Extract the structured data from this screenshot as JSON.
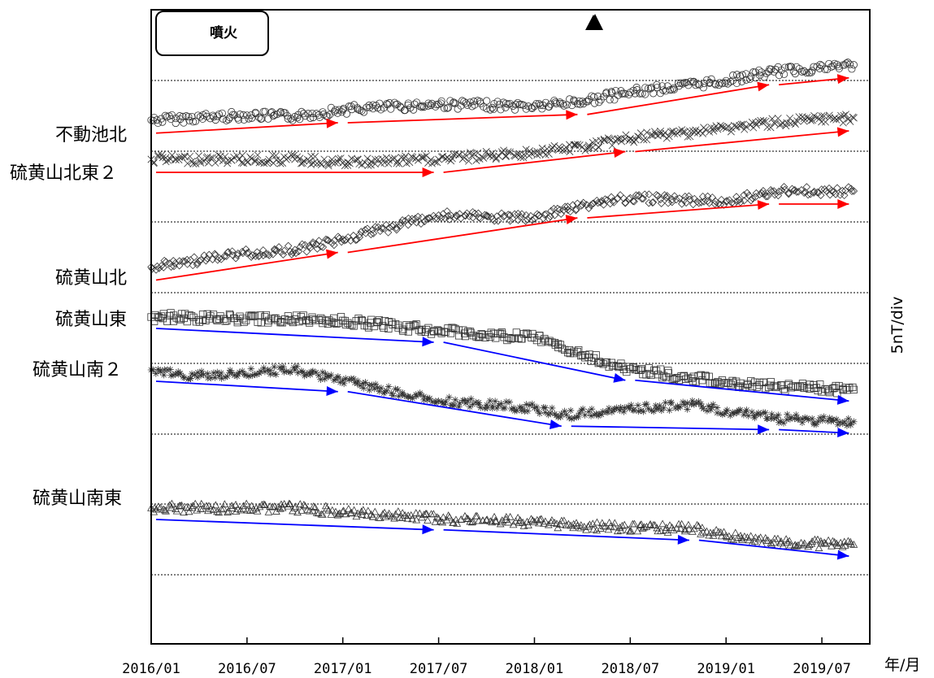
{
  "chart_data": {
    "type": "scatter",
    "title": "",
    "ylabel": "5nT/div",
    "xlabel": "年/月",
    "x_ticks": [
      "2016/01",
      "2016/07",
      "2017/01",
      "2017/07",
      "2018/01",
      "2018/07",
      "2019/01",
      "2019/07"
    ],
    "x_range": [
      "2016/01",
      "2019/10"
    ],
    "legend": {
      "label": "噴火",
      "marker": "▲",
      "eruption_date": "2018/04"
    },
    "grid": "dotted horizontal",
    "series": [
      {
        "name": "不動池北",
        "marker": "circle",
        "arrow": "red",
        "points": [
          [
            "2016/01",
            0.5
          ],
          [
            "2016/07",
            1.2
          ],
          [
            "2016/10",
            1.0
          ],
          [
            "2017/01",
            2.0
          ],
          [
            "2017/07",
            2.8
          ],
          [
            "2018/01",
            2.5
          ],
          [
            "2018/04",
            3.2
          ],
          [
            "2018/07",
            4.5
          ],
          [
            "2019/01",
            6.2
          ],
          [
            "2019/04",
            7.5
          ],
          [
            "2019/09",
            8.5
          ]
        ]
      },
      {
        "name": "硫黄山北東２",
        "marker": "cross",
        "arrow": "red",
        "points": [
          [
            "2016/01",
            0.0
          ],
          [
            "2016/10",
            0.0
          ],
          [
            "2017/01",
            -0.5
          ],
          [
            "2017/07",
            0.0
          ],
          [
            "2018/01",
            1.0
          ],
          [
            "2018/04",
            1.8
          ],
          [
            "2018/07",
            3.0
          ],
          [
            "2019/01",
            4.5
          ],
          [
            "2019/04",
            5.3
          ],
          [
            "2019/09",
            6.0
          ]
        ]
      },
      {
        "name": "硫黄山北",
        "marker": "diamond",
        "arrow": "red",
        "points": [
          [
            "2016/01",
            -1.0
          ],
          [
            "2016/07",
            1.0
          ],
          [
            "2016/10",
            1.5
          ],
          [
            "2017/01",
            3.0
          ],
          [
            "2017/07",
            6.5
          ],
          [
            "2018/01",
            6.0
          ],
          [
            "2018/04",
            8.0
          ],
          [
            "2018/07",
            9.0
          ],
          [
            "2019/01",
            8.5
          ],
          [
            "2019/04",
            10.0
          ],
          [
            "2019/09",
            10.0
          ]
        ]
      },
      {
        "name": "硫黄山東",
        "marker": "square",
        "arrow": "blue",
        "points": [
          [
            "2016/01",
            0.0
          ],
          [
            "2016/10",
            -0.3
          ],
          [
            "2017/01",
            -0.5
          ],
          [
            "2017/07",
            -2.0
          ],
          [
            "2018/01",
            -3.0
          ],
          [
            "2018/04",
            -5.5
          ],
          [
            "2018/07",
            -7.5
          ],
          [
            "2019/01",
            -9.5
          ],
          [
            "2019/04",
            -10.0
          ],
          [
            "2019/09",
            -10.5
          ]
        ]
      },
      {
        "name": "硫黄山南２",
        "marker": "asterisk",
        "arrow": "blue",
        "points": [
          [
            "2016/01",
            0.0
          ],
          [
            "2016/03",
            -1.0
          ],
          [
            "2016/10",
            0.0
          ],
          [
            "2017/01",
            -1.5
          ],
          [
            "2017/07",
            -4.5
          ],
          [
            "2018/01",
            -5.5
          ],
          [
            "2018/03",
            -6.5
          ],
          [
            "2018/11",
            -5.0
          ],
          [
            "2019/01",
            -6.0
          ],
          [
            "2019/04",
            -7.0
          ],
          [
            "2019/09",
            -7.5
          ]
        ]
      },
      {
        "name": "硫黄山南東",
        "marker": "triangle",
        "arrow": "blue",
        "points": [
          [
            "2016/01",
            0.0
          ],
          [
            "2016/10",
            0.0
          ],
          [
            "2017/01",
            -0.5
          ],
          [
            "2017/07",
            -1.5
          ],
          [
            "2018/01",
            -2.0
          ],
          [
            "2018/03",
            -2.5
          ],
          [
            "2018/11",
            -3.0
          ],
          [
            "2019/01",
            -4.0
          ],
          [
            "2019/04",
            -5.0
          ],
          [
            "2019/09",
            -5.3
          ]
        ]
      }
    ]
  }
}
